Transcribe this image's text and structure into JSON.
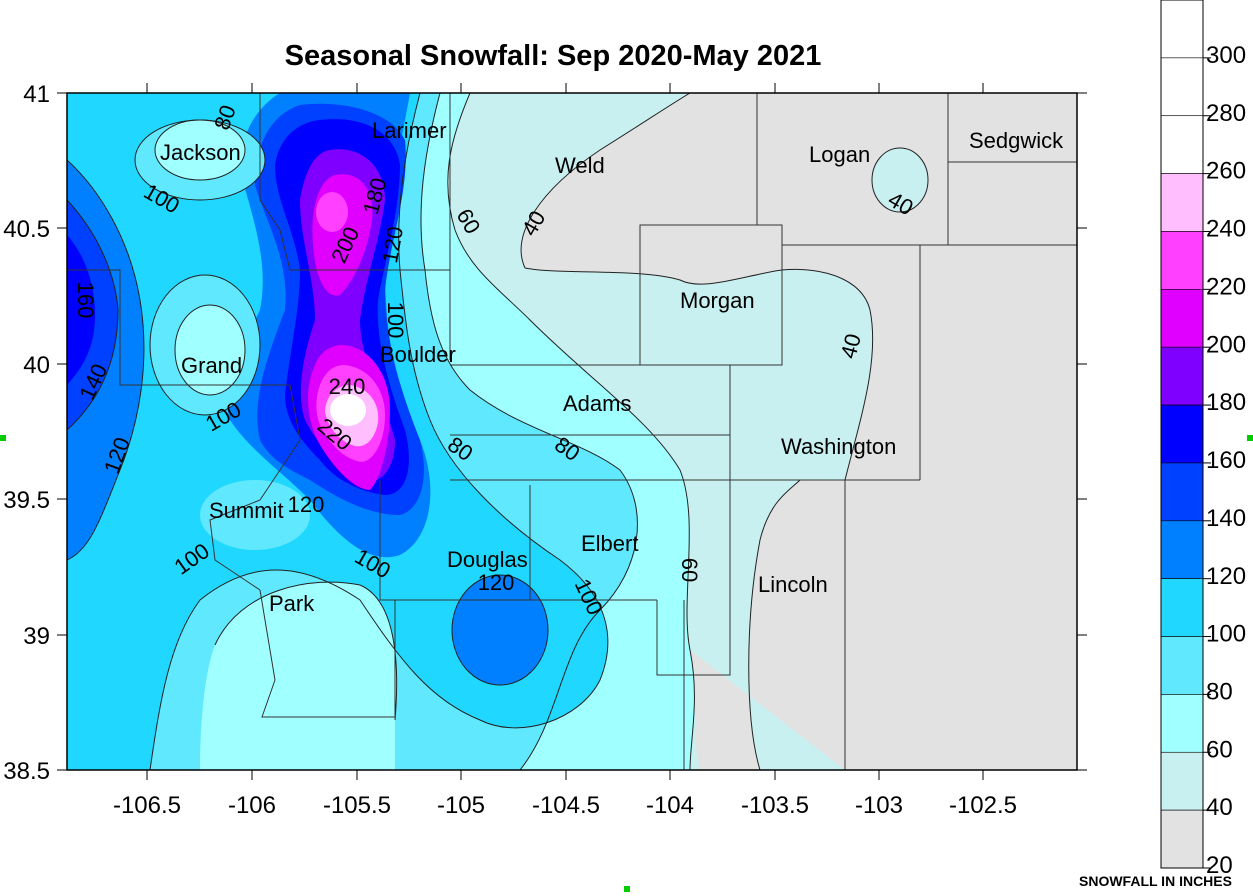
{
  "title": "Seasonal Snowfall: Sep 2020-May 2021",
  "legend_title": "SNOWFALL IN INCHES",
  "x_ticks": [
    "-106.5",
    "-106",
    "-105.5",
    "-105",
    "-104.5",
    "-104",
    "-103.5",
    "-103",
    "-102.5"
  ],
  "y_ticks": [
    "41",
    "40.5",
    "40",
    "39.5",
    "39",
    "38.5"
  ],
  "counties": [
    "Jackson",
    "Larimer",
    "Weld",
    "Logan",
    "Sedgwick",
    "Morgan",
    "Grand",
    "Boulder",
    "Adams",
    "Washington",
    "Summit",
    "Douglas",
    "Elbert",
    "Lincoln",
    "Park"
  ],
  "contour_labels": [
    "80",
    "100",
    "180",
    "200",
    "60",
    "40",
    "40",
    "120",
    "160",
    "100",
    "40",
    "140",
    "240",
    "100",
    "220",
    "80",
    "80",
    "120",
    "120",
    "100",
    "60",
    "120",
    "100",
    "100"
  ],
  "legend": {
    "labels": [
      "300",
      "280",
      "260",
      "240",
      "220",
      "200",
      "180",
      "160",
      "140",
      "120",
      "100",
      "80",
      "60",
      "40",
      "20"
    ],
    "colors": [
      "#ffffff",
      "#ffffff",
      "#ffffff",
      "#ffbfff",
      "#ff40ff",
      "#df00ff",
      "#8000ff",
      "#0000ff",
      "#0040ff",
      "#0080ff",
      "#20d8ff",
      "#60e8ff",
      "#a0ffff",
      "#c8f0f0",
      "#e2e2e2"
    ]
  },
  "colors": {
    "c20": "#e2e2e2",
    "c40": "#c8f0f0",
    "c60": "#a0ffff",
    "c80": "#60e8ff",
    "c100": "#20d8ff",
    "c120": "#0080ff",
    "c140": "#0040ff",
    "c160": "#0000ff",
    "c180": "#8000ff",
    "c200": "#df00ff",
    "c220": "#ff40ff",
    "c240": "#ffbfff",
    "c260": "#ffffff"
  }
}
